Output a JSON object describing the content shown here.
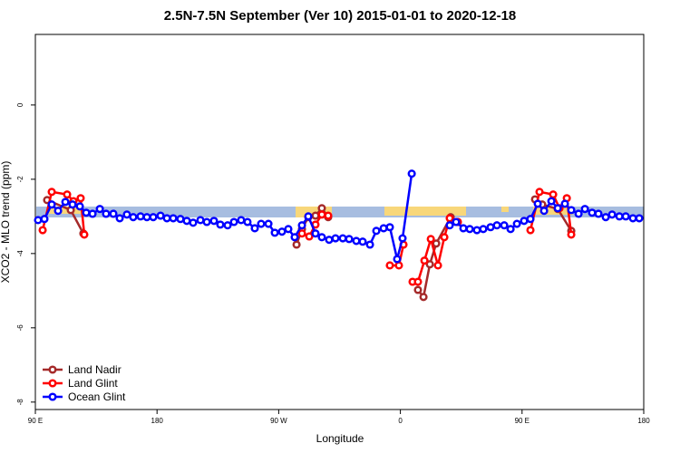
{
  "chart_data": {
    "type": "line",
    "title": "2.5N-7.5N September (Ver 10)   2015-01-01 to 2020-12-18",
    "xlabel": "Longitude",
    "ylabel": "XCO2 - MLO trend (ppm)",
    "xlim": [
      90,
      540
    ],
    "ylim": [
      -8.2,
      1.9
    ],
    "xticks": [
      {
        "value": 90,
        "label": "90 E"
      },
      180,
      {
        "value": 270,
        "label": "90 W"
      },
      {
        "value": 360,
        "label": "0"
      },
      {
        "value": 450,
        "label": "90 E"
      },
      {
        "value": 540,
        "label": "180"
      }
    ],
    "yticks": [
      0,
      -2,
      -4,
      -6,
      -8
    ],
    "legend": "bottom-left",
    "series": [
      {
        "name": "Land Nadir",
        "color": "#a52a2a",
        "x": [
          98.7,
          116.2,
          125.5,
          null,
          283.2,
          287.2,
          291.9,
          297.2,
          301.9,
          306.6,
          null,
          373.0,
          377.1,
          381.8,
          386.5,
          397.2,
          402.5,
          null,
          459.6,
          464.9,
          476.4,
          486.4
        ],
        "values": [
          -2.56,
          -2.83,
          -3.46,
          null,
          -3.76,
          -3.34,
          -3.02,
          -2.98,
          -2.78,
          -3.02,
          null,
          -4.98,
          -5.17,
          -4.29,
          -3.73,
          -3.02,
          -3.15,
          null,
          -2.54,
          -2.68,
          -2.8,
          -3.39
        ]
      },
      {
        "name": "Land Glint",
        "color": "#ff0000",
        "x": [
          95.4,
          102.1,
          113.5,
          118.2,
          123.5,
          126.2,
          null,
          287.2,
          292.6,
          297.2,
          301.9,
          306.6,
          null,
          352.2,
          358.9,
          362.3,
          null,
          369.0,
          373.0,
          377.8,
          382.5,
          387.8,
          392.5,
          396.5,
          402.5,
          null,
          456.2,
          462.9,
          473.0,
          477.7,
          483.1,
          486.4
        ],
        "values": [
          -3.37,
          -2.34,
          -2.41,
          -2.59,
          -2.51,
          -3.49,
          null,
          -3.46,
          -3.54,
          -3.22,
          -2.95,
          -2.98,
          null,
          -4.32,
          -4.32,
          -3.76,
          null,
          -4.76,
          -4.76,
          -4.19,
          -3.61,
          -4.32,
          -3.56,
          -3.05,
          -3.15,
          null,
          -3.37,
          -2.34,
          -2.41,
          -2.78,
          -2.51,
          -3.49
        ]
      },
      {
        "name": "Ocean Glint",
        "color": "#0000ff",
        "x": [
          92.0,
          96.7,
          102.1,
          106.8,
          112.2,
          117.5,
          122.9,
          127.6,
          132.3,
          137.7,
          142.3,
          147.7,
          152.4,
          157.7,
          162.4,
          167.8,
          172.5,
          177.2,
          182.6,
          187.3,
          192.0,
          197.3,
          202.0,
          206.7,
          212.1,
          216.8,
          222.1,
          226.8,
          232.2,
          236.9,
          242.2,
          246.9,
          252.3,
          257.0,
          262.4,
          267.1,
          272.4,
          277.1,
          281.8,
          287.2,
          291.9,
          297.2,
          301.9,
          307.3,
          312.0,
          317.4,
          322.1,
          327.4,
          332.1,
          337.5,
          342.2,
          347.6,
          352.2,
          357.6,
          361.6,
          368.4,
          null,
          396.5,
          401.2,
          406.6,
          411.3,
          416.6,
          421.3,
          426.7,
          431.4,
          436.8,
          441.5,
          446.2,
          451.5,
          456.2,
          461.6,
          466.3,
          471.7,
          476.4,
          481.7,
          486.4,
          491.8,
          496.5,
          501.8,
          506.5,
          511.9,
          516.6,
          522.0,
          526.7,
          532.0,
          536.7
        ],
        "values": [
          -3.1,
          -3.07,
          -2.68,
          -2.85,
          -2.61,
          -2.68,
          -2.73,
          -2.9,
          -2.93,
          -2.8,
          -2.93,
          -2.93,
          -3.05,
          -2.95,
          -3.02,
          -3.0,
          -3.02,
          -3.02,
          -2.98,
          -3.05,
          -3.05,
          -3.07,
          -3.12,
          -3.17,
          -3.1,
          -3.15,
          -3.12,
          -3.22,
          -3.24,
          -3.15,
          -3.1,
          -3.15,
          -3.32,
          -3.2,
          -3.2,
          -3.44,
          -3.41,
          -3.34,
          -3.56,
          -3.24,
          -3.0,
          -3.46,
          -3.56,
          -3.63,
          -3.59,
          -3.59,
          -3.61,
          -3.66,
          -3.68,
          -3.76,
          -3.39,
          -3.32,
          -3.29,
          -4.15,
          -3.59,
          -1.85,
          null,
          -3.24,
          -3.15,
          -3.32,
          -3.34,
          -3.37,
          -3.34,
          -3.29,
          -3.24,
          -3.24,
          -3.34,
          -3.2,
          -3.12,
          -3.07,
          -2.66,
          -2.85,
          -2.59,
          -2.78,
          -2.66,
          -2.83,
          -2.93,
          -2.8,
          -2.9,
          -2.93,
          -3.02,
          -2.95,
          -3.0,
          -3.0,
          -3.05,
          -3.05
        ]
      }
    ]
  }
}
